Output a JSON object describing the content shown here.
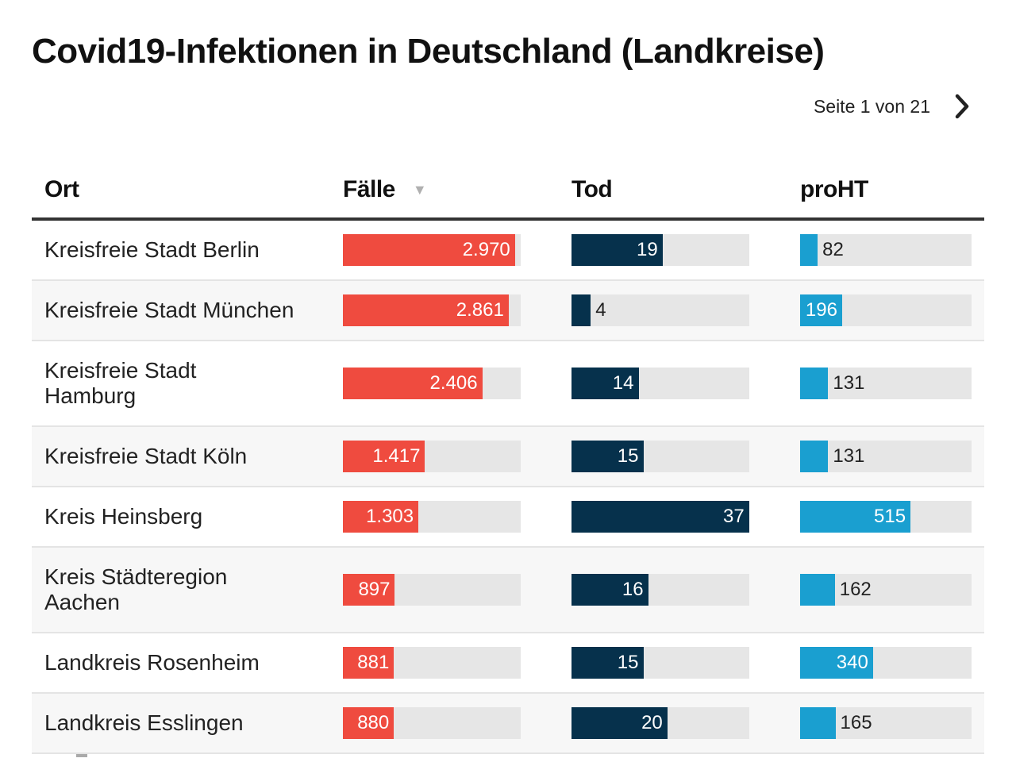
{
  "title": "Covid19-Infektionen in Deutschland (Landkreise)",
  "pager": {
    "text": "Seite 1 von 21",
    "next_icon": "chevron-right-icon"
  },
  "columns": {
    "ort": "Ort",
    "faelle": "Fälle",
    "tod": "Tod",
    "proht": "proHT",
    "sort_icon": "sort-down-triangle-icon"
  },
  "colors": {
    "faelle": "#ef4b3f",
    "tod": "#06314c",
    "proht": "#1a9fd0",
    "track": "#e6e6e6"
  },
  "scale_max": {
    "faelle": 3070,
    "tod": 37,
    "proht": 800
  },
  "rows": [
    {
      "ort": "Kreisfreie Stadt Berlin",
      "faelle": 2970,
      "faelle_label": "2.970",
      "tod": 19,
      "tod_label": "19",
      "proht": 82,
      "proht_label": "82"
    },
    {
      "ort": "Kreisfreie Stadt München",
      "faelle": 2861,
      "faelle_label": "2.861",
      "tod": 4,
      "tod_label": "4",
      "proht": 196,
      "proht_label": "196"
    },
    {
      "ort": "Kreisfreie Stadt Hamburg",
      "faelle": 2406,
      "faelle_label": "2.406",
      "tod": 14,
      "tod_label": "14",
      "proht": 131,
      "proht_label": "131"
    },
    {
      "ort": "Kreisfreie Stadt Köln",
      "faelle": 1417,
      "faelle_label": "1.417",
      "tod": 15,
      "tod_label": "15",
      "proht": 131,
      "proht_label": "131"
    },
    {
      "ort": "Kreis Heinsberg",
      "faelle": 1303,
      "faelle_label": "1.303",
      "tod": 37,
      "tod_label": "37",
      "proht": 515,
      "proht_label": "515"
    },
    {
      "ort": "Kreis Städteregion Aachen",
      "faelle": 897,
      "faelle_label": "897",
      "tod": 16,
      "tod_label": "16",
      "proht": 162,
      "proht_label": "162"
    },
    {
      "ort": "Landkreis Rosenheim",
      "faelle": 881,
      "faelle_label": "881",
      "tod": 15,
      "tod_label": "15",
      "proht": 340,
      "proht_label": "340"
    },
    {
      "ort": "Landkreis Esslingen",
      "faelle": 880,
      "faelle_label": "880",
      "tod": 20,
      "tod_label": "20",
      "proht": 165,
      "proht_label": "165"
    }
  ]
}
